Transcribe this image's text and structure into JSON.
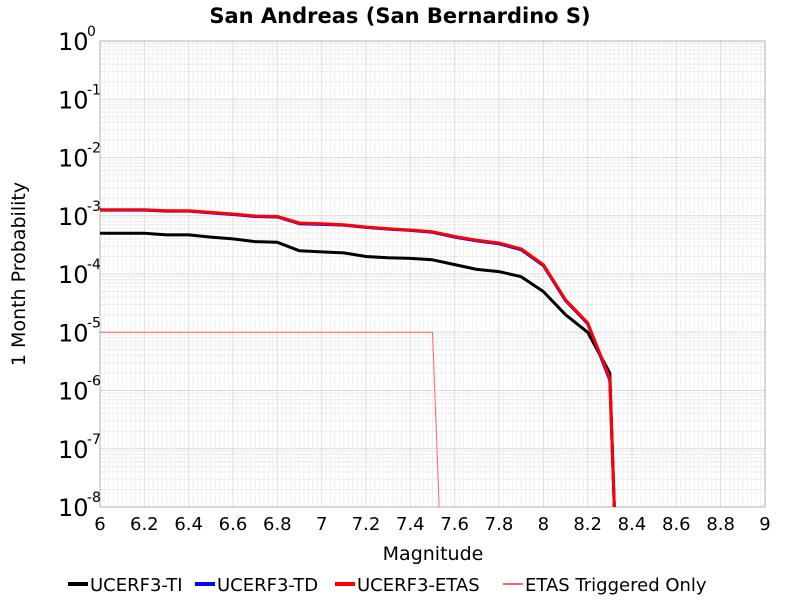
{
  "chart_data": {
    "type": "line",
    "title": "San Andreas (San Bernardino S)",
    "xlabel": "Magnitude",
    "ylabel": "1 Month Probability",
    "xlim": [
      6,
      9
    ],
    "ylim": [
      1e-08,
      1
    ],
    "yscale": "log",
    "grid": true,
    "legend_position": "bottom",
    "x_ticks": [
      "6",
      "6.2",
      "6.4",
      "6.6",
      "6.8",
      "7",
      "7.2",
      "7.4",
      "7.6",
      "7.8",
      "8",
      "8.2",
      "8.4",
      "8.6",
      "8.8",
      "9"
    ],
    "y_tick_exponents": [
      "0",
      "-1",
      "-2",
      "-3",
      "-4",
      "-5",
      "-6",
      "-7",
      "-8"
    ],
    "series": [
      {
        "name": "UCERF3-TI",
        "color": "#000000",
        "width": 3,
        "x": [
          6.0,
          6.1,
          6.2,
          6.3,
          6.4,
          6.5,
          6.6,
          6.7,
          6.8,
          6.9,
          7.0,
          7.1,
          7.2,
          7.3,
          7.4,
          7.5,
          7.6,
          7.7,
          7.8,
          7.9,
          8.0,
          8.1,
          8.2,
          8.3,
          8.32
        ],
        "y": [
          0.0005,
          0.0005,
          0.0005,
          0.00047,
          0.00047,
          0.00043,
          0.0004,
          0.00036,
          0.00035,
          0.00025,
          0.00024,
          0.00023,
          0.0002,
          0.00019,
          0.000185,
          0.000175,
          0.000145,
          0.00012,
          0.00011,
          9e-05,
          5e-05,
          2e-05,
          1e-05,
          2e-06,
          1e-08
        ]
      },
      {
        "name": "UCERF3-TD",
        "color": "#0000ff",
        "width": 3,
        "x": [
          6.0,
          6.1,
          6.2,
          6.3,
          6.4,
          6.5,
          6.6,
          6.7,
          6.8,
          6.9,
          7.0,
          7.1,
          7.2,
          7.3,
          7.4,
          7.5,
          7.6,
          7.7,
          7.8,
          7.9,
          8.0,
          8.1,
          8.2,
          8.3,
          8.32
        ],
        "y": [
          0.00125,
          0.00125,
          0.00125,
          0.0012,
          0.0012,
          0.00112,
          0.00105,
          0.00097,
          0.00095,
          0.00073,
          0.00071,
          0.00069,
          0.00063,
          0.00059,
          0.00056,
          0.00052,
          0.00043,
          0.00037,
          0.00033,
          0.00026,
          0.00014,
          3.5e-05,
          1.4e-05,
          1.5e-06,
          1e-08
        ]
      },
      {
        "name": "UCERF3-ETAS",
        "color": "#ff0000",
        "width": 3,
        "x": [
          6.0,
          6.1,
          6.2,
          6.3,
          6.4,
          6.5,
          6.6,
          6.7,
          6.8,
          6.9,
          7.0,
          7.1,
          7.2,
          7.3,
          7.4,
          7.5,
          7.6,
          7.7,
          7.8,
          7.9,
          8.0,
          8.1,
          8.2,
          8.3,
          8.32
        ],
        "y": [
          0.00127,
          0.00127,
          0.00127,
          0.00122,
          0.00122,
          0.00114,
          0.00107,
          0.00099,
          0.00097,
          0.00075,
          0.00073,
          0.0007,
          0.00064,
          0.0006,
          0.00057,
          0.00053,
          0.00044,
          0.00038,
          0.00034,
          0.00027,
          0.000145,
          3.6e-05,
          1.45e-05,
          1.6e-06,
          1e-08
        ]
      },
      {
        "name": "ETAS Triggered Only",
        "color": "#ff6666",
        "width": 1,
        "x": [
          6.0,
          7.5,
          7.53
        ],
        "y": [
          1e-05,
          1e-05,
          1e-08
        ]
      }
    ]
  }
}
